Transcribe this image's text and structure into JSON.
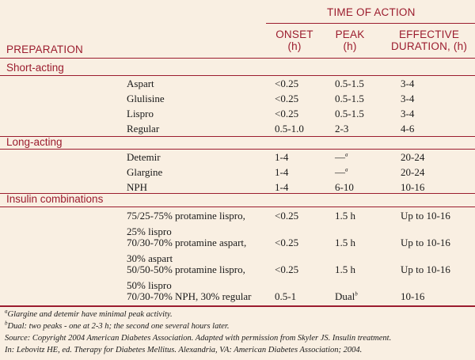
{
  "header": {
    "group": "TIME OF ACTION",
    "preparation": "PREPARATION",
    "onset": [
      "ONSET",
      "(h)"
    ],
    "peak": [
      "PEAK",
      "(h)"
    ],
    "duration": [
      "EFFECTIVE",
      "DURATION, (h)"
    ]
  },
  "categories": {
    "short": "Short-acting",
    "long": "Long-acting",
    "combo": "Insulin combinations"
  },
  "rows": [
    {
      "prep": "Aspart",
      "onset": "<0.25",
      "peak": "0.5-1.5",
      "duration": "3-4"
    },
    {
      "prep": "Glulisine",
      "onset": "<0.25",
      "peak": "0.5-1.5",
      "duration": "3-4"
    },
    {
      "prep": "Lispro",
      "onset": "<0.25",
      "peak": "0.5-1.5",
      "duration": "3-4"
    },
    {
      "prep": "Regular",
      "onset": "0.5-1.0",
      "peak": "2-3",
      "duration": "4-6"
    },
    {
      "prep": "Detemir",
      "onset": "1-4",
      "peak": "—",
      "peak_mark": "a",
      "duration": "20-24"
    },
    {
      "prep": "Glargine",
      "onset": "1-4",
      "peak": "—",
      "peak_mark": "a",
      "duration": "20-24"
    },
    {
      "prep": "NPH",
      "onset": "1-4",
      "peak": "6-10",
      "duration": "10-16"
    },
    {
      "prep": "75/25-75% protamine lispro,",
      "prep2": "25% lispro",
      "onset": "<0.25",
      "peak": "1.5 h",
      "duration": "Up to 10-16"
    },
    {
      "prep": "70/30-70% protamine aspart,",
      "prep2": "30% aspart",
      "onset": "<0.25",
      "peak": "1.5 h",
      "duration": "Up to 10-16"
    },
    {
      "prep": "50/50-50% protamine lispro,",
      "prep2": "50% lispro",
      "onset": "<0.25",
      "peak": "1.5 h",
      "duration": "Up to 10-16"
    },
    {
      "prep": "70/30-70% NPH, 30% regular",
      "onset": "0.5-1",
      "peak": "Dual",
      "peak_mark": "b",
      "duration": "10-16"
    }
  ],
  "footnotes": {
    "a_mark": "a",
    "a": "Glargine and detemir have minimal peak activity.",
    "b_mark": "b",
    "b": "Dual: two peaks - one at 2-3 h; the second one several hours later.",
    "source1": "Source: Copyright 2004 American Diabetes Association. Adapted with permission from Skyler JS. Insulin treatment.",
    "source2": "In: Lebovitz HE, ed. Therapy for Diabetes Mellitus. Alexandria, VA: American Diabetes Association; 2004."
  },
  "colors": {
    "background": "#f9efe2",
    "accent": "#9b1c2e",
    "text": "#1a1a1a"
  }
}
